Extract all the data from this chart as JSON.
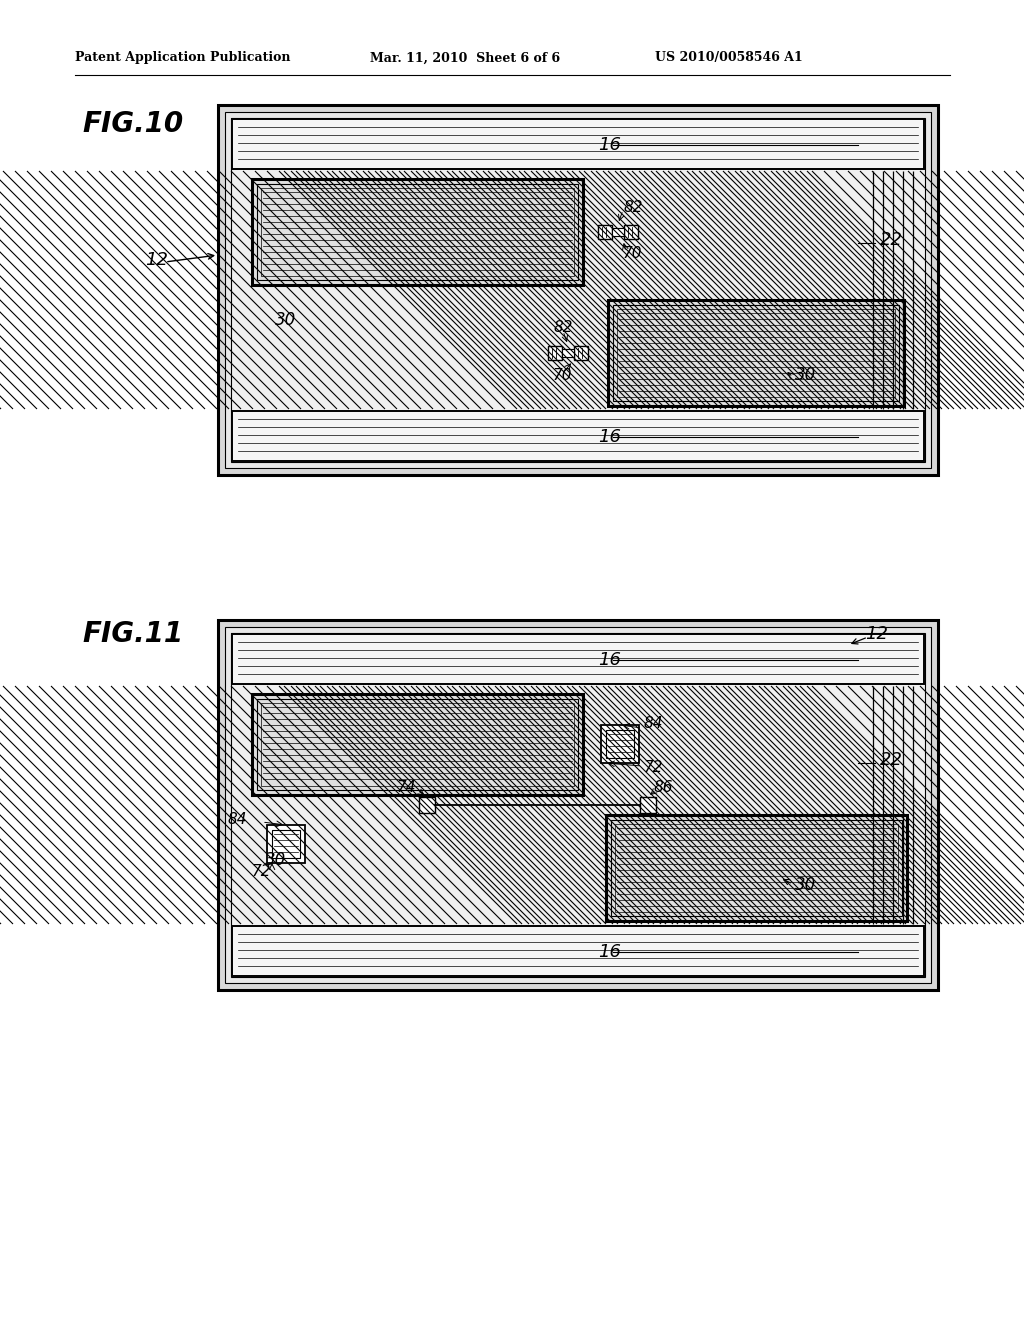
{
  "bg_color": "#ffffff",
  "header_text": "Patent Application Publication",
  "header_date": "Mar. 11, 2010  Sheet 6 of 6",
  "header_patent": "US 2010/0058546 A1",
  "fig10_label": "FIG.10",
  "fig11_label": "FIG.11",
  "fig10_ref_12": "12",
  "fig10_ref_16a": "16",
  "fig10_ref_16b": "16",
  "fig10_ref_22": "22",
  "fig10_ref_30a": "30",
  "fig10_ref_30b": "30",
  "fig10_ref_70a": "70",
  "fig10_ref_70b": "70",
  "fig10_ref_82a": "82",
  "fig10_ref_82b": "82",
  "fig11_ref_12": "12",
  "fig11_ref_16a": "16",
  "fig11_ref_16b": "16",
  "fig11_ref_22": "22",
  "fig11_ref_30a": "30",
  "fig11_ref_30b": "30",
  "fig11_ref_72a": "72",
  "fig11_ref_72b": "72",
  "fig11_ref_74": "74",
  "fig11_ref_84a": "84",
  "fig11_ref_84b": "84",
  "fig11_ref_86": "86"
}
